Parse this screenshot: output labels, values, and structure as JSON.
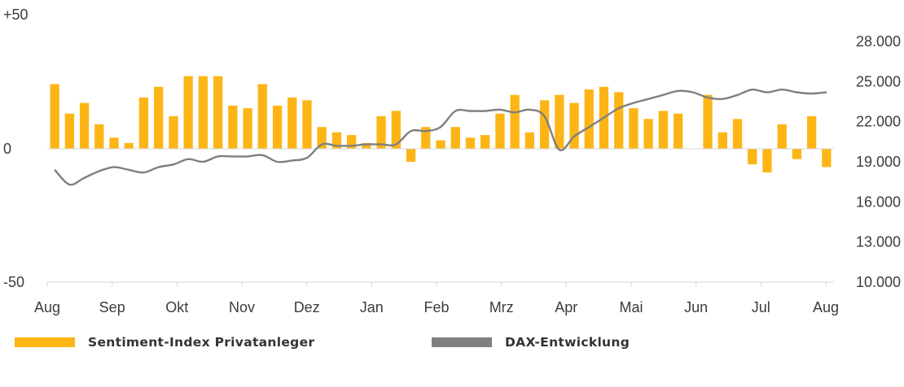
{
  "colors": {
    "bar": "#FDB515",
    "line": "#7F7F7F",
    "axis": "#D9D9D9",
    "text": "#3C3C3C"
  },
  "legend": [
    {
      "label": "Sentiment-Index Privatanleger",
      "color": "#FDB515"
    },
    {
      "label": "DAX-Entwicklung",
      "color": "#7F7F7F"
    }
  ],
  "chart_data": {
    "type": "bar",
    "title": "",
    "left_axis": {
      "ticks": [
        "+50",
        "0",
        "-50"
      ],
      "range": [
        -50,
        50
      ]
    },
    "right_axis": {
      "ticks": [
        "28.000",
        "25.000",
        "22.000",
        "19.000",
        "16.000",
        "13.000",
        "10.000"
      ],
      "range": [
        10000,
        28000
      ]
    },
    "months": [
      "Aug",
      "Sep",
      "Okt",
      "Nov",
      "Dez",
      "Jan",
      "Feb",
      "Mrz",
      "Apr",
      "Mai",
      "Jun",
      "Jul",
      "Aug"
    ],
    "series": [
      {
        "name": "Sentiment-Index Privatanleger",
        "kind": "bar",
        "axis": "left",
        "values": [
          24,
          13,
          17,
          9,
          4,
          2,
          19,
          23,
          12,
          27,
          27,
          27,
          16,
          15,
          24,
          16,
          19,
          18,
          8,
          6,
          5,
          2,
          12,
          14,
          -5,
          8,
          3,
          8,
          4,
          5,
          13,
          20,
          6,
          18,
          20,
          17,
          22,
          23,
          21,
          15,
          11,
          14,
          13,
          null,
          20,
          6,
          11,
          -6,
          -9,
          9,
          -4,
          12,
          -7
        ]
      },
      {
        "name": "DAX-Entwicklung",
        "kind": "line",
        "axis": "right",
        "values": [
          18400,
          17300,
          17800,
          18300,
          18600,
          18400,
          18200,
          18600,
          18800,
          19200,
          19000,
          19400,
          19400,
          19400,
          19500,
          19000,
          19100,
          19300,
          20300,
          20200,
          20200,
          20300,
          20300,
          20300,
          21300,
          21300,
          21600,
          22800,
          22800,
          22800,
          22900,
          22700,
          22900,
          22400,
          19900,
          20900,
          21600,
          22300,
          23000,
          23400,
          23700,
          24000,
          24300,
          24200,
          23800,
          23700,
          24000,
          24400,
          24200,
          24400,
          24200,
          24100,
          24200
        ]
      }
    ]
  }
}
